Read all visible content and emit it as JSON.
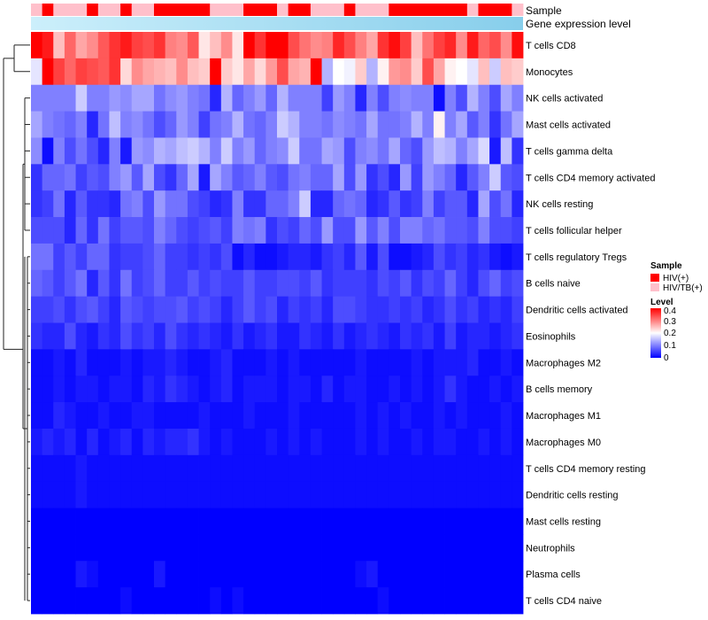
{
  "chart_data": {
    "type": "heatmap",
    "title": "",
    "annotation_rows": {
      "sample_label": "Sample",
      "gene_label": "Gene expression level"
    },
    "rows": [
      "T cells CD8",
      "Monocytes",
      "NK cells activated",
      "Mast cells activated",
      "T cells gamma delta",
      "T cells CD4 memory activated",
      "NK cells resting",
      "T cells follicular helper",
      "T cells regulatory  Tregs",
      "B cells naive",
      "Dendritic cells activated",
      "Eosinophils",
      "Macrophages M2",
      "B cells memory",
      "Macrophages M1",
      "Macrophages M0",
      "T cells CD4 memory resting",
      "Dendritic cells resting",
      "Mast cells resting",
      "Neutrophils",
      "Plasma cells",
      "T cells CD4 naive"
    ],
    "sample_groups": [
      "HIV/TB(+)",
      "HIV(+)",
      "HIV/TB(+)",
      "HIV/TB(+)",
      "HIV/TB(+)",
      "HIV(+)",
      "HIV/TB(+)",
      "HIV/TB(+)",
      "HIV(+)",
      "HIV/TB(+)",
      "HIV/TB(+)",
      "HIV(+)",
      "HIV(+)",
      "HIV(+)",
      "HIV(+)",
      "HIV(+)",
      "HIV/TB(+)",
      "HIV/TB(+)",
      "HIV/TB(+)",
      "HIV(+)",
      "HIV(+)",
      "HIV(+)",
      "HIV/TB(+)",
      "HIV(+)",
      "HIV(+)",
      "HIV/TB(+)",
      "HIV/TB(+)",
      "HIV/TB(+)",
      "HIV(+)",
      "HIV/TB(+)",
      "HIV/TB(+)",
      "HIV/TB(+)",
      "HIV(+)",
      "HIV(+)",
      "HIV(+)",
      "HIV(+)",
      "HIV(+)",
      "HIV(+)",
      "HIV(+)",
      "HIV/TB(+)",
      "HIV(+)",
      "HIV(+)",
      "HIV(+)",
      "HIV/TB(+)"
    ],
    "values": [
      [
        0.4,
        0.38,
        0.25,
        0.32,
        0.27,
        0.29,
        0.33,
        0.36,
        0.38,
        0.35,
        0.34,
        0.36,
        0.3,
        0.29,
        0.33,
        0.22,
        0.25,
        0.29,
        0.22,
        0.4,
        0.36,
        0.4,
        0.4,
        0.34,
        0.31,
        0.29,
        0.3,
        0.37,
        0.34,
        0.3,
        0.27,
        0.36,
        0.39,
        0.35,
        0.25,
        0.31,
        0.35,
        0.37,
        0.29,
        0.38,
        0.32,
        0.34,
        0.29,
        0.39
      ],
      [
        0.18,
        0.4,
        0.35,
        0.32,
        0.35,
        0.34,
        0.33,
        0.36,
        0.23,
        0.29,
        0.27,
        0.26,
        0.25,
        0.29,
        0.25,
        0.24,
        0.4,
        0.24,
        0.22,
        0.27,
        0.23,
        0.28,
        0.34,
        0.27,
        0.26,
        0.4,
        0.14,
        0.2,
        0.19,
        0.24,
        0.14,
        0.21,
        0.28,
        0.29,
        0.24,
        0.34,
        0.27,
        0.21,
        0.2,
        0.18,
        0.25,
        0.16,
        0.25,
        0.24
      ],
      [
        0.1,
        0.1,
        0.1,
        0.1,
        0.16,
        0.1,
        0.1,
        0.12,
        0.11,
        0.13,
        0.13,
        0.09,
        0.11,
        0.12,
        0.1,
        0.09,
        0.03,
        0.14,
        0.08,
        0.1,
        0.12,
        0.08,
        0.14,
        0.1,
        0.1,
        0.1,
        0.05,
        0.12,
        0.1,
        0.03,
        0.1,
        0.06,
        0.1,
        0.11,
        0.1,
        0.1,
        0.01,
        0.1,
        0.06,
        0.14,
        0.1,
        0.06,
        0.13,
        0.1
      ],
      [
        0.13,
        0.1,
        0.09,
        0.08,
        0.1,
        0.03,
        0.09,
        0.15,
        0.1,
        0.11,
        0.09,
        0.06,
        0.08,
        0.12,
        0.1,
        0.05,
        0.09,
        0.1,
        0.14,
        0.09,
        0.08,
        0.1,
        0.16,
        0.14,
        0.1,
        0.1,
        0.09,
        0.11,
        0.1,
        0.09,
        0.13,
        0.09,
        0.09,
        0.1,
        0.14,
        0.1,
        0.21,
        0.1,
        0.13,
        0.07,
        0.1,
        0.04,
        0.09,
        0.13
      ],
      [
        0.11,
        0.01,
        0.1,
        0.06,
        0.09,
        0.06,
        0.03,
        0.1,
        0.02,
        0.12,
        0.11,
        0.14,
        0.13,
        0.15,
        0.16,
        0.14,
        0.1,
        0.16,
        0.1,
        0.12,
        0.08,
        0.1,
        0.11,
        0.16,
        0.09,
        0.09,
        0.13,
        0.12,
        0.06,
        0.1,
        0.11,
        0.09,
        0.13,
        0.08,
        0.06,
        0.12,
        0.15,
        0.14,
        0.1,
        0.13,
        0.17,
        0.02,
        0.15,
        0.04
      ],
      [
        0.04,
        0.08,
        0.08,
        0.09,
        0.05,
        0.07,
        0.06,
        0.1,
        0.12,
        0.07,
        0.13,
        0.06,
        0.04,
        0.08,
        0.13,
        0.02,
        0.13,
        0.1,
        0.07,
        0.08,
        0.1,
        0.07,
        0.06,
        0.09,
        0.1,
        0.08,
        0.08,
        0.13,
        0.06,
        0.12,
        0.04,
        0.06,
        0.03,
        0.12,
        0.05,
        0.12,
        0.1,
        0.08,
        0.03,
        0.07,
        0.1,
        0.16,
        0.07,
        0.06
      ],
      [
        0.04,
        0.05,
        0.09,
        0.03,
        0.07,
        0.04,
        0.04,
        0.03,
        0.09,
        0.1,
        0.06,
        0.12,
        0.09,
        0.09,
        0.06,
        0.05,
        0.03,
        0.04,
        0.1,
        0.04,
        0.04,
        0.08,
        0.08,
        0.1,
        0.16,
        0.03,
        0.03,
        0.08,
        0.09,
        0.08,
        0.03,
        0.04,
        0.07,
        0.04,
        0.05,
        0.1,
        0.05,
        0.07,
        0.07,
        0.03,
        0.13,
        0.06,
        0.09,
        0.03
      ],
      [
        0.06,
        0.06,
        0.06,
        0.03,
        0.08,
        0.04,
        0.09,
        0.05,
        0.07,
        0.07,
        0.06,
        0.1,
        0.08,
        0.06,
        0.05,
        0.06,
        0.07,
        0.05,
        0.1,
        0.09,
        0.1,
        0.04,
        0.06,
        0.05,
        0.08,
        0.06,
        0.12,
        0.06,
        0.06,
        0.12,
        0.07,
        0.1,
        0.06,
        0.1,
        0.1,
        0.08,
        0.09,
        0.07,
        0.07,
        0.06,
        0.1,
        0.06,
        0.06,
        0.05
      ],
      [
        0.09,
        0.09,
        0.05,
        0.07,
        0.05,
        0.08,
        0.08,
        0.04,
        0.05,
        0.05,
        0.06,
        0.08,
        0.05,
        0.05,
        0.04,
        0.05,
        0.04,
        0.06,
        0.01,
        0.03,
        0.01,
        0.01,
        0.02,
        0.03,
        0.03,
        0.02,
        0.04,
        0.05,
        0.03,
        0.07,
        0.02,
        0.06,
        0.01,
        0.01,
        0.02,
        0.03,
        0.06,
        0.04,
        0.05,
        0.03,
        0.04,
        0.02,
        0.01,
        0.02
      ],
      [
        0.08,
        0.07,
        0.05,
        0.07,
        0.09,
        0.03,
        0.07,
        0.04,
        0.09,
        0.05,
        0.06,
        0.08,
        0.05,
        0.05,
        0.07,
        0.05,
        0.06,
        0.05,
        0.05,
        0.07,
        0.05,
        0.05,
        0.06,
        0.06,
        0.05,
        0.07,
        0.04,
        0.05,
        0.05,
        0.05,
        0.04,
        0.06,
        0.05,
        0.07,
        0.04,
        0.06,
        0.05,
        0.08,
        0.05,
        0.03,
        0.06,
        0.08,
        0.05,
        0.06
      ],
      [
        0.05,
        0.05,
        0.06,
        0.04,
        0.06,
        0.07,
        0.05,
        0.03,
        0.07,
        0.06,
        0.05,
        0.06,
        0.06,
        0.07,
        0.05,
        0.06,
        0.05,
        0.03,
        0.05,
        0.07,
        0.05,
        0.06,
        0.03,
        0.05,
        0.04,
        0.05,
        0.03,
        0.06,
        0.06,
        0.05,
        0.04,
        0.04,
        0.05,
        0.04,
        0.05,
        0.03,
        0.04,
        0.06,
        0.04,
        0.05,
        0.03,
        0.04,
        0.03,
        0.05
      ],
      [
        0.04,
        0.03,
        0.03,
        0.06,
        0.03,
        0.02,
        0.04,
        0.03,
        0.06,
        0.04,
        0.05,
        0.03,
        0.06,
        0.04,
        0.03,
        0.04,
        0.03,
        0.02,
        0.04,
        0.02,
        0.03,
        0.04,
        0.02,
        0.02,
        0.04,
        0.03,
        0.02,
        0.04,
        0.02,
        0.03,
        0.04,
        0.03,
        0.02,
        0.04,
        0.03,
        0.04,
        0.02,
        0.05,
        0.02,
        0.03,
        0.03,
        0.02,
        0.03,
        0.04
      ],
      [
        0.01,
        0.01,
        0.02,
        0.01,
        0.03,
        0.01,
        0.01,
        0.01,
        0.02,
        0.01,
        0.02,
        0.02,
        0.03,
        0.02,
        0.01,
        0.01,
        0.02,
        0.03,
        0.01,
        0.01,
        0.01,
        0.02,
        0.01,
        0.02,
        0.01,
        0.01,
        0.01,
        0.01,
        0.01,
        0.02,
        0.01,
        0.01,
        0.01,
        0.01,
        0.02,
        0.01,
        0.02,
        0.02,
        0.02,
        0.03,
        0.01,
        0.01,
        0.02,
        0.01
      ],
      [
        0.01,
        0.01,
        0.02,
        0.01,
        0.02,
        0.02,
        0.01,
        0.02,
        0.02,
        0.01,
        0.03,
        0.02,
        0.04,
        0.03,
        0.02,
        0.01,
        0.02,
        0.03,
        0.01,
        0.02,
        0.02,
        0.02,
        0.01,
        0.02,
        0.02,
        0.01,
        0.03,
        0.01,
        0.02,
        0.02,
        0.01,
        0.01,
        0.02,
        0.01,
        0.02,
        0.01,
        0.02,
        0.04,
        0.02,
        0.01,
        0.01,
        0.02,
        0.01,
        0.02
      ],
      [
        0.01,
        0.01,
        0.03,
        0.02,
        0.01,
        0.01,
        0.02,
        0.01,
        0.01,
        0.02,
        0.02,
        0.01,
        0.01,
        0.01,
        0.01,
        0.02,
        0.01,
        0.01,
        0.01,
        0.02,
        0.01,
        0.01,
        0.01,
        0.02,
        0.01,
        0.01,
        0.01,
        0.01,
        0.01,
        0.02,
        0.01,
        0.02,
        0.01,
        0.02,
        0.01,
        0.01,
        0.02,
        0.01,
        0.02,
        0.01,
        0.01,
        0.01,
        0.02,
        0.01
      ],
      [
        0.02,
        0.03,
        0.02,
        0.03,
        0.01,
        0.03,
        0.01,
        0.02,
        0.03,
        0.01,
        0.03,
        0.02,
        0.03,
        0.03,
        0.04,
        0.02,
        0.01,
        0.02,
        0.01,
        0.01,
        0.01,
        0.02,
        0.01,
        0.02,
        0.01,
        0.02,
        0.01,
        0.01,
        0.01,
        0.02,
        0.01,
        0.02,
        0.01,
        0.01,
        0.02,
        0.01,
        0.02,
        0.02,
        0.01,
        0.01,
        0.02,
        0.01,
        0.02,
        0.01
      ],
      [
        0.01,
        0.01,
        0.01,
        0.01,
        0.02,
        0.01,
        0.01,
        0.01,
        0.01,
        0.01,
        0.01,
        0.01,
        0.01,
        0.01,
        0.01,
        0.01,
        0.01,
        0.01,
        0.01,
        0.01,
        0.01,
        0.01,
        0.01,
        0.01,
        0.01,
        0.01,
        0.01,
        0.01,
        0.01,
        0.01,
        0.01,
        0.01,
        0.01,
        0.01,
        0.01,
        0.01,
        0.01,
        0.01,
        0.01,
        0.01,
        0.01,
        0.01,
        0.01,
        0.01
      ],
      [
        0.01,
        0.01,
        0.01,
        0.01,
        0.02,
        0.01,
        0.01,
        0.01,
        0.01,
        0.01,
        0.01,
        0.01,
        0.01,
        0.01,
        0.01,
        0.01,
        0.01,
        0.01,
        0.01,
        0.01,
        0.01,
        0.01,
        0.01,
        0.01,
        0.01,
        0.01,
        0.01,
        0.01,
        0.01,
        0.01,
        0.01,
        0.01,
        0.01,
        0.01,
        0.01,
        0.01,
        0.01,
        0.01,
        0.01,
        0.01,
        0.01,
        0.01,
        0.01,
        0.01
      ],
      [
        0.0,
        0.0,
        0.0,
        0.0,
        0.0,
        0.0,
        0.0,
        0.0,
        0.0,
        0.0,
        0.0,
        0.0,
        0.0,
        0.0,
        0.0,
        0.0,
        0.0,
        0.0,
        0.0,
        0.0,
        0.0,
        0.0,
        0.0,
        0.0,
        0.0,
        0.0,
        0.0,
        0.0,
        0.0,
        0.0,
        0.0,
        0.0,
        0.0,
        0.0,
        0.0,
        0.0,
        0.0,
        0.0,
        0.0,
        0.0,
        0.0,
        0.0,
        0.0,
        0.0
      ],
      [
        0.0,
        0.0,
        0.0,
        0.0,
        0.0,
        0.0,
        0.0,
        0.0,
        0.0,
        0.0,
        0.0,
        0.0,
        0.0,
        0.0,
        0.0,
        0.0,
        0.0,
        0.0,
        0.0,
        0.0,
        0.0,
        0.0,
        0.0,
        0.0,
        0.0,
        0.0,
        0.0,
        0.0,
        0.0,
        0.0,
        0.0,
        0.0,
        0.0,
        0.0,
        0.0,
        0.0,
        0.0,
        0.0,
        0.0,
        0.0,
        0.0,
        0.0,
        0.0,
        0.0
      ],
      [
        0.0,
        0.0,
        0.0,
        0.0,
        0.02,
        0.01,
        0.0,
        0.0,
        0.0,
        0.0,
        0.0,
        0.02,
        0.0,
        0.0,
        0.0,
        0.0,
        0.0,
        0.0,
        0.0,
        0.0,
        0.0,
        0.0,
        0.0,
        0.0,
        0.0,
        0.0,
        0.0,
        0.0,
        0.0,
        0.01,
        0.02,
        0.0,
        0.0,
        0.0,
        0.0,
        0.0,
        0.0,
        0.0,
        0.0,
        0.0,
        0.0,
        0.0,
        0.0,
        0.0
      ],
      [
        0.0,
        0.0,
        0.0,
        0.0,
        0.0,
        0.0,
        0.0,
        0.0,
        0.01,
        0.0,
        0.0,
        0.0,
        0.0,
        0.0,
        0.0,
        0.0,
        0.01,
        0.0,
        0.01,
        0.0,
        0.0,
        0.0,
        0.0,
        0.0,
        0.0,
        0.0,
        0.0,
        0.0,
        0.0,
        0.0,
        0.0,
        0.01,
        0.0,
        0.0,
        0.0,
        0.0,
        0.0,
        0.0,
        0.0,
        0.0,
        0.0,
        0.0,
        0.0,
        0.0
      ]
    ],
    "color_scale": {
      "min": 0,
      "max": 0.4,
      "colors": [
        "#0000ff",
        "#ffffff",
        "#ff0000"
      ]
    },
    "legend": {
      "sample_title": "Sample",
      "sample_entries": [
        {
          "label": "HIV(+)",
          "color": "#ff0000"
        },
        {
          "label": "HIV/TB(+)",
          "color": "#ffc0cb"
        }
      ],
      "level_title": "Level",
      "level_ticks": [
        "0.4",
        "0.3",
        "0.2",
        "0.1",
        "0"
      ]
    },
    "gene_bar_colors": [
      "#cceffb",
      "#87ceeb"
    ]
  }
}
